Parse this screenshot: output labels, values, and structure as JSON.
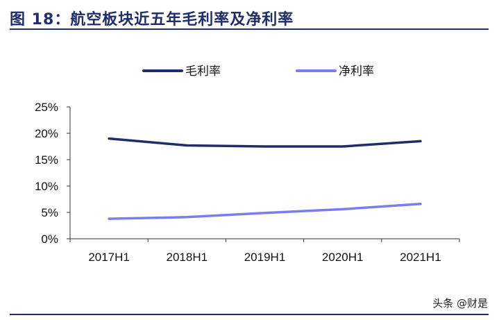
{
  "figure": {
    "title": "图 18：航空板块近五年毛利率及净利率",
    "watermark": "头条 @财是"
  },
  "chart_data": {
    "type": "line",
    "categories": [
      "2017H1",
      "2018H1",
      "2019H1",
      "2020H1",
      "2021H1"
    ],
    "series": [
      {
        "name": "毛利率",
        "values": [
          19.0,
          17.7,
          17.5,
          17.5,
          18.5
        ],
        "color": "#1f2d6b"
      },
      {
        "name": "净利率",
        "values": [
          3.8,
          4.1,
          4.9,
          5.6,
          6.6
        ],
        "color": "#7b7cf0"
      }
    ],
    "y_ticks": [
      "0%",
      "5%",
      "10%",
      "15%",
      "20%",
      "25%"
    ],
    "ylim": [
      0,
      25
    ],
    "grid": false,
    "legend_position": "top"
  }
}
